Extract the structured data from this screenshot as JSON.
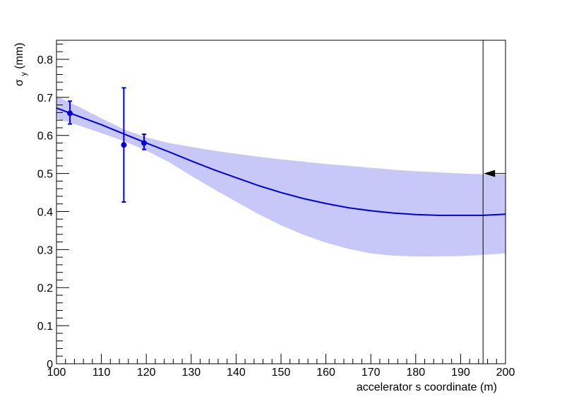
{
  "chart_data": {
    "type": "line",
    "title": "",
    "xlabel": "accelerator s coordinate (m)",
    "ylabel": {
      "symbol": "σ",
      "subscript": "y",
      "unit": " (mm)"
    },
    "xlim": [
      100,
      200
    ],
    "ylim": [
      0,
      0.85
    ],
    "x_ticks": [
      100,
      110,
      120,
      130,
      140,
      150,
      160,
      170,
      180,
      190,
      200
    ],
    "x_tick_labels": [
      "100",
      "110",
      "120",
      "130",
      "140",
      "150",
      "160",
      "170",
      "180",
      "190",
      "200"
    ],
    "y_ticks": [
      0,
      0.1,
      0.2,
      0.3,
      0.4,
      0.5,
      0.6,
      0.7,
      0.8
    ],
    "y_tick_labels": [
      "0",
      "0.1",
      "0.2",
      "0.3",
      "0.4",
      "0.5",
      "0.6",
      "0.7",
      "0.8"
    ],
    "grid": false,
    "legend": "none",
    "colors": {
      "fit_line": "#0000dd",
      "band": "#c8c8f8",
      "points": "#0000dd",
      "marker_line": "#000000",
      "arrow": "#000000"
    },
    "fit_curve": {
      "x": [
        100,
        105,
        110,
        115,
        120,
        125,
        130,
        135,
        140,
        145,
        150,
        155,
        160,
        165,
        170,
        175,
        180,
        185,
        190,
        195,
        200
      ],
      "y": [
        0.672,
        0.65,
        0.628,
        0.604,
        0.58,
        0.557,
        0.533,
        0.51,
        0.489,
        0.468,
        0.45,
        0.434,
        0.421,
        0.41,
        0.402,
        0.396,
        0.392,
        0.39,
        0.39,
        0.39,
        0.393
      ]
    },
    "band_upper": {
      "x": [
        100,
        105,
        110,
        115,
        120,
        125,
        130,
        135,
        140,
        145,
        150,
        155,
        160,
        165,
        170,
        175,
        180,
        185,
        190,
        195,
        200
      ],
      "y": [
        0.703,
        0.675,
        0.645,
        0.616,
        0.595,
        0.58,
        0.57,
        0.56,
        0.552,
        0.544,
        0.537,
        0.531,
        0.525,
        0.52,
        0.515,
        0.51,
        0.506,
        0.503,
        0.5,
        0.498,
        0.497
      ]
    },
    "band_lower": {
      "x": [
        100,
        105,
        110,
        115,
        120,
        125,
        130,
        135,
        140,
        145,
        150,
        155,
        160,
        165,
        170,
        175,
        180,
        185,
        190,
        195,
        200
      ],
      "y": [
        0.645,
        0.626,
        0.606,
        0.585,
        0.56,
        0.53,
        0.494,
        0.459,
        0.426,
        0.393,
        0.364,
        0.339,
        0.318,
        0.302,
        0.29,
        0.284,
        0.282,
        0.282,
        0.283,
        0.286,
        0.29
      ]
    },
    "points": [
      {
        "x": 103,
        "y": 0.658,
        "err_low": 0.63,
        "err_high": 0.69
      },
      {
        "x": 115,
        "y": 0.575,
        "err_low": 0.425,
        "err_high": 0.725
      },
      {
        "x": 119.5,
        "y": 0.58,
        "err_low": 0.563,
        "err_high": 0.603
      }
    ],
    "vertical_marker_x": 195,
    "arrow": {
      "x_from": 200,
      "x_to": 195,
      "y": 0.5
    }
  }
}
